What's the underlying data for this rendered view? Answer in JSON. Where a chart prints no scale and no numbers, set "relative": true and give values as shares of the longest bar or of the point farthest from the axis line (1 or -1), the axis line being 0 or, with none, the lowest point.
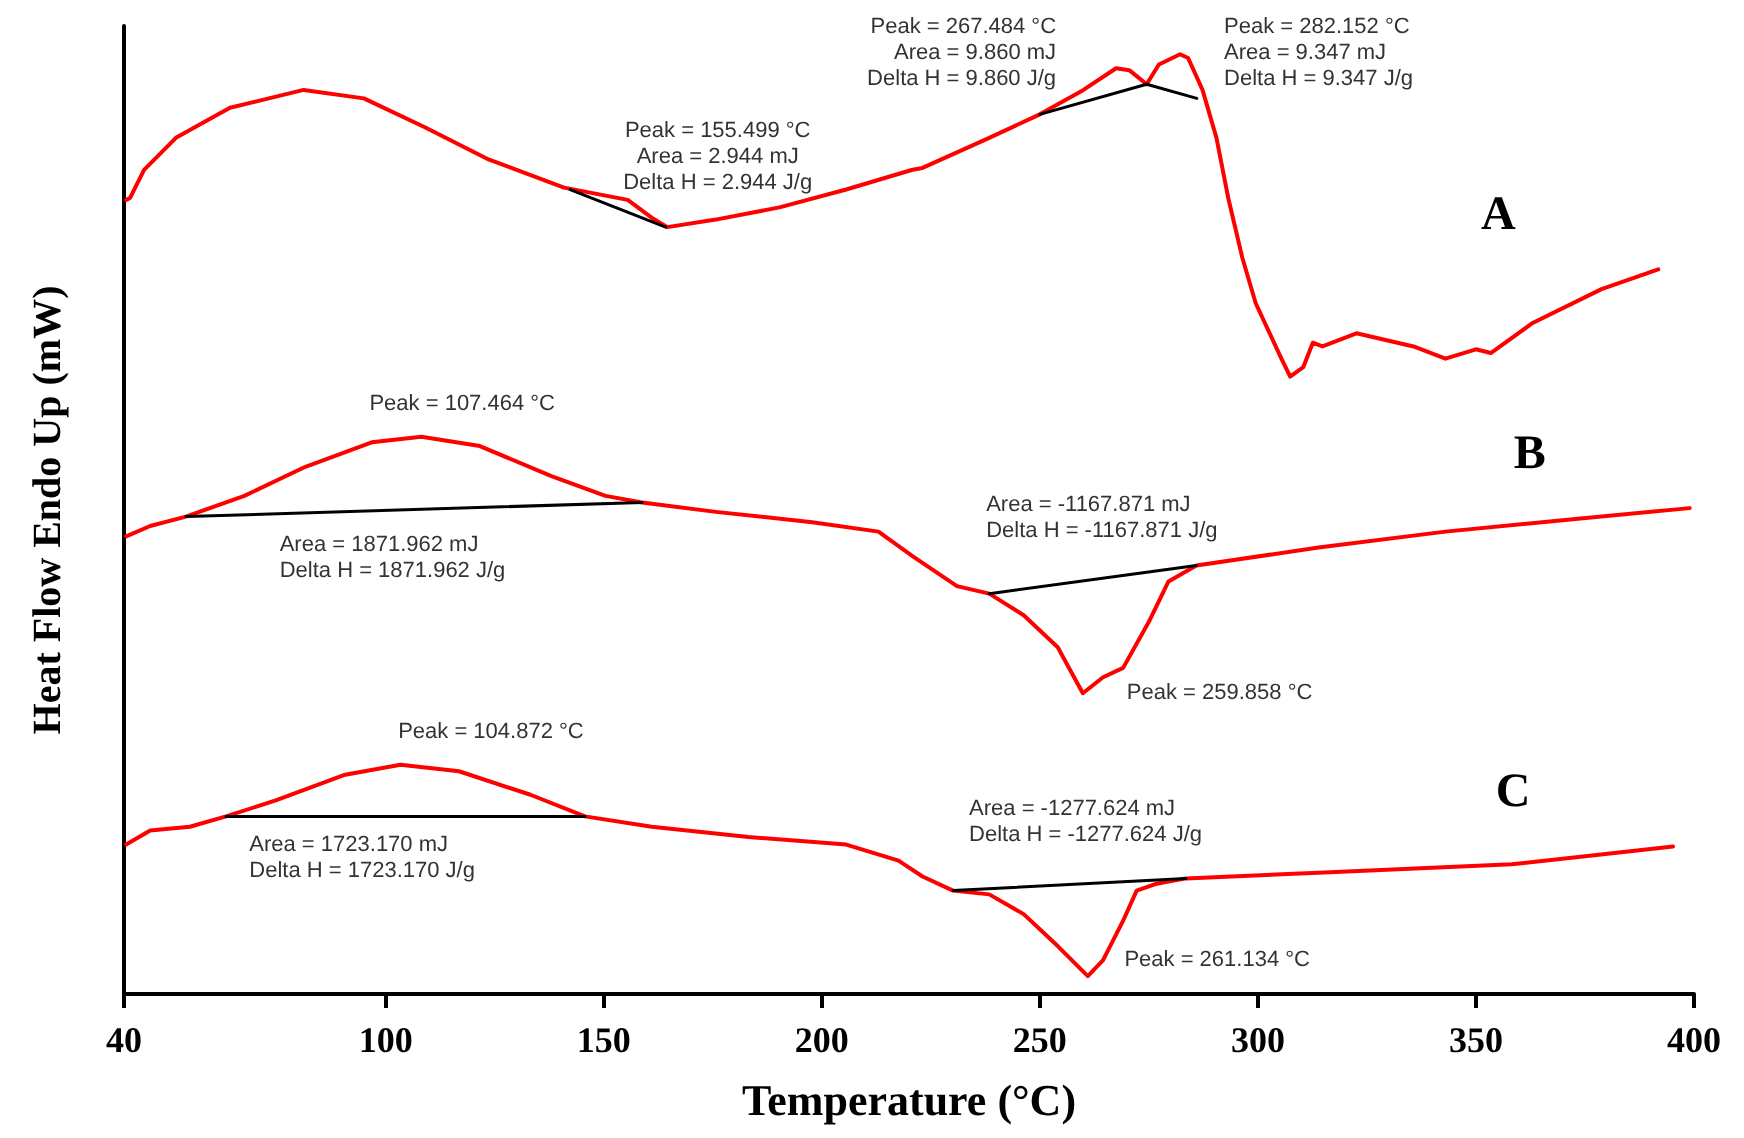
{
  "chart_data": {
    "type": "line",
    "relative": true,
    "xlabel": "Temperature (°C)",
    "ylabel": "Heat Flow Endo Up (mW)",
    "xlim": [
      40,
      400
    ],
    "xticks": [
      40,
      100,
      150,
      200,
      250,
      300,
      350,
      400
    ],
    "grid": false,
    "legend": false,
    "series": [
      {
        "name": "A",
        "color": "#ff0000",
        "x": [
          40.5,
          41.4,
          44.6,
          51.9,
          64.3,
          81.2,
          95,
          109.1,
          123.6,
          140.9,
          155.499,
          161,
          164.6,
          175.7,
          190.3,
          205.6,
          220.8,
          223.1,
          238.4,
          250,
          260,
          267.484,
          270.5,
          274.5,
          277.3,
          282.152,
          284,
          287.3,
          290.5,
          293.2,
          296.4,
          299.5,
          302.2,
          305.2,
          307.4,
          310.4,
          312.6,
          314.8,
          322.6,
          335.7,
          343,
          350,
          353.4,
          363,
          378.8,
          391.8
        ],
        "values": [
          0.845,
          0.847,
          0.877,
          0.911,
          0.943,
          0.962,
          0.953,
          0.922,
          0.888,
          0.858,
          0.845,
          0.826,
          0.816,
          0.824,
          0.837,
          0.856,
          0.877,
          0.879,
          0.911,
          0.936,
          0.962,
          0.985,
          0.983,
          0.968,
          0.989,
          1,
          0.996,
          0.962,
          0.911,
          0.847,
          0.784,
          0.735,
          0.708,
          0.678,
          0.657,
          0.667,
          0.693,
          0.689,
          0.703,
          0.689,
          0.676,
          0.686,
          0.682,
          0.714,
          0.75,
          0.771
        ]
      },
      {
        "name": "B",
        "color": "#ff0000",
        "x": [
          40.5,
          46,
          54.2,
          67.6,
          81.6,
          96.8,
          108.2,
          121.6,
          138,
          150.4,
          158.8,
          175.7,
          197.8,
          213,
          220.8,
          231,
          238.4,
          246.3,
          254.1,
          259.858,
          264.5,
          269.1,
          275,
          279.5,
          285.9,
          313.9,
          343,
          374,
          399
        ],
        "values": [
          0.487,
          0.498,
          0.508,
          0.53,
          0.561,
          0.587,
          0.593,
          0.583,
          0.551,
          0.53,
          0.523,
          0.513,
          0.502,
          0.492,
          0.466,
          0.434,
          0.426,
          0.403,
          0.369,
          0.32,
          0.337,
          0.347,
          0.396,
          0.439,
          0.456,
          0.475,
          0.492,
          0.506,
          0.517
        ]
      },
      {
        "name": "C",
        "color": "#ff0000",
        "x": [
          40.5,
          46,
          55.1,
          63.4,
          74.8,
          90.4,
          103.4,
          116.8,
          133.2,
          145.7,
          161,
          183.2,
          205.6,
          217.6,
          223.1,
          230.1,
          238.4,
          246.3,
          254.1,
          261,
          264.5,
          269.1,
          272.2,
          276.5,
          283.5,
          313.9,
          358.2,
          374,
          395.2
        ],
        "values": [
          0.159,
          0.174,
          0.178,
          0.189,
          0.206,
          0.233,
          0.244,
          0.237,
          0.212,
          0.189,
          0.178,
          0.167,
          0.159,
          0.142,
          0.125,
          0.11,
          0.106,
          0.085,
          0.051,
          0.019,
          0.036,
          0.078,
          0.11,
          0.117,
          0.123,
          0.129,
          0.138,
          0.146,
          0.157
        ]
      },
      {
        "type": "line",
        "color": "#000000",
        "x": [
          142.3,
          164.2
        ],
        "values": [
          0.856,
          0.816
        ]
      },
      {
        "type": "line",
        "color": "#000000",
        "x": [
          250,
          274.5,
          286
        ],
        "values": [
          0.936,
          0.968,
          0.953
        ]
      },
      {
        "type": "line",
        "color": "#000000",
        "x": [
          54.2,
          158.8
        ],
        "values": [
          0.508,
          0.523
        ]
      },
      {
        "type": "line",
        "color": "#000000",
        "x": [
          238.4,
          285.9
        ],
        "values": [
          0.426,
          0.456
        ]
      },
      {
        "type": "line",
        "color": "#000000",
        "x": [
          63.4,
          145.7
        ],
        "values": [
          0.189,
          0.189
        ]
      },
      {
        "type": "line",
        "color": "#000000",
        "x": [
          230.1,
          283.5
        ],
        "values": [
          0.11,
          0.123
        ]
      }
    ],
    "annotations": [
      {
        "text": "Peak = 155.499 °C\nArea = 2.944 mJ\nDelta H = 2.944 J/g",
        "x": 155.499,
        "y": 0.845
      },
      {
        "text": "Peak = 267.484 °C\nArea = 9.860 mJ\nDelta H = 9.860 J/g",
        "x": 267.484,
        "y": 0.985
      },
      {
        "text": "Peak = 282.152 °C\nArea = 9.347 mJ\nDelta H = 9.347 J/g",
        "x": 282.152,
        "y": 1
      },
      {
        "text": "Peak = 107.464 °C",
        "x": 107.464,
        "y": 0.593
      },
      {
        "text": "Area = 1871.962 mJ\nDelta H = 1871.962 J/g",
        "x": 100,
        "y": 0.515
      },
      {
        "text": "Peak = 259.858 °C",
        "x": 259.858,
        "y": 0.32
      },
      {
        "text": "Area = -1167.871 mJ\nDelta H = -1167.871 J/g",
        "x": 262,
        "y": 0.441
      },
      {
        "text": "Peak = 104.872 °C",
        "x": 104.872,
        "y": 0.244
      },
      {
        "text": "Area = 1723.170 mJ\nDelta H = 1723.170 J/g",
        "x": 104.5,
        "y": 0.189
      },
      {
        "text": "Peak = 261.134 °C",
        "x": 261.134,
        "y": 0.019
      },
      {
        "text": "Area = -1277.624 mJ\nDelta H = -1277.624 J/g",
        "x": 256.7,
        "y": 0.117
      }
    ]
  }
}
